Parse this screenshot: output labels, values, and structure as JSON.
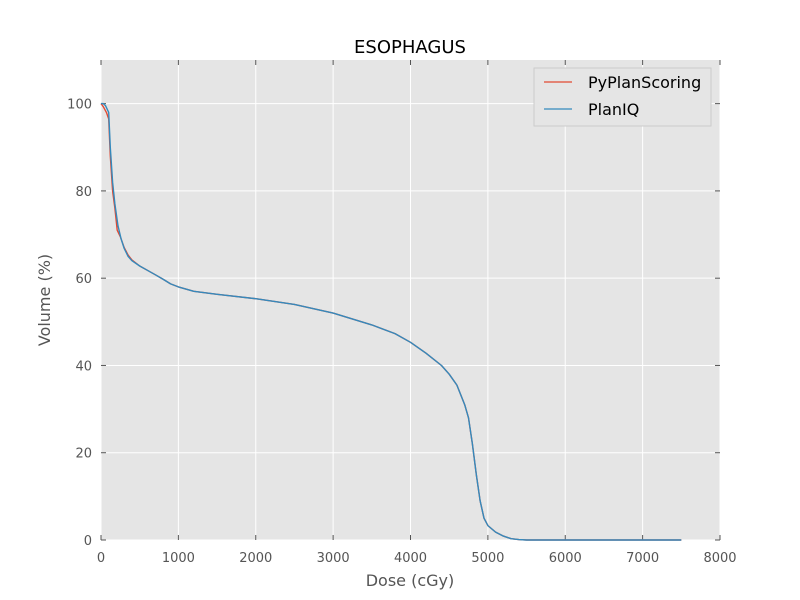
{
  "chart_data": {
    "type": "line",
    "title": "ESOPHAGUS",
    "xlabel": "Dose (cGy)",
    "ylabel": "Volume (%)",
    "xlim": [
      0,
      8000
    ],
    "ylim": [
      0,
      110
    ],
    "xticks": [
      0,
      1000,
      2000,
      3000,
      4000,
      5000,
      6000,
      7000,
      8000
    ],
    "yticks": [
      0,
      20,
      40,
      60,
      80,
      100
    ],
    "grid": true,
    "legend_position": "top-right",
    "series": [
      {
        "name": "PyPlanScoring",
        "color": "#e24a33",
        "points": [
          [
            0,
            100
          ],
          [
            30,
            99.3
          ],
          [
            70,
            98
          ],
          [
            100,
            96.5
          ],
          [
            120,
            88
          ],
          [
            150,
            80
          ],
          [
            180,
            76
          ],
          [
            210,
            71
          ],
          [
            250,
            69.5
          ],
          [
            300,
            67
          ],
          [
            350,
            65.3
          ],
          [
            400,
            64.2
          ],
          [
            500,
            62.8
          ],
          [
            600,
            61.8
          ],
          [
            700,
            60.8
          ],
          [
            800,
            59.8
          ],
          [
            900,
            58.7
          ],
          [
            1000,
            58
          ],
          [
            1200,
            57
          ],
          [
            1500,
            56.3
          ],
          [
            2000,
            55.3
          ],
          [
            2500,
            54
          ],
          [
            3000,
            52
          ],
          [
            3500,
            49.3
          ],
          [
            3800,
            47.3
          ],
          [
            4000,
            45.3
          ],
          [
            4200,
            42.8
          ],
          [
            4400,
            40
          ],
          [
            4500,
            38
          ],
          [
            4600,
            35.5
          ],
          [
            4700,
            31
          ],
          [
            4750,
            28
          ],
          [
            4800,
            22
          ],
          [
            4850,
            15
          ],
          [
            4900,
            9
          ],
          [
            4950,
            5
          ],
          [
            5000,
            3.3
          ],
          [
            5100,
            1.8
          ],
          [
            5200,
            0.9
          ],
          [
            5300,
            0.3
          ],
          [
            5400,
            0.1
          ],
          [
            5500,
            0
          ],
          [
            6000,
            0
          ],
          [
            7000,
            0
          ],
          [
            7500,
            0
          ]
        ]
      },
      {
        "name": "PlanIQ",
        "color": "#348abd",
        "points": [
          [
            0,
            100
          ],
          [
            30,
            100
          ],
          [
            60,
            99.5
          ],
          [
            100,
            98
          ],
          [
            120,
            90
          ],
          [
            150,
            82
          ],
          [
            180,
            77
          ],
          [
            220,
            72
          ],
          [
            260,
            69
          ],
          [
            300,
            66.8
          ],
          [
            350,
            65
          ],
          [
            400,
            64
          ],
          [
            500,
            62.8
          ],
          [
            600,
            61.8
          ],
          [
            700,
            60.8
          ],
          [
            800,
            59.8
          ],
          [
            900,
            58.7
          ],
          [
            1000,
            58
          ],
          [
            1200,
            57
          ],
          [
            1500,
            56.3
          ],
          [
            2000,
            55.3
          ],
          [
            2500,
            54
          ],
          [
            3000,
            52
          ],
          [
            3500,
            49.3
          ],
          [
            3800,
            47.3
          ],
          [
            4000,
            45.3
          ],
          [
            4200,
            42.8
          ],
          [
            4400,
            40
          ],
          [
            4500,
            38
          ],
          [
            4600,
            35.5
          ],
          [
            4700,
            31
          ],
          [
            4750,
            28
          ],
          [
            4800,
            22
          ],
          [
            4850,
            15
          ],
          [
            4900,
            9
          ],
          [
            4950,
            5
          ],
          [
            5000,
            3.3
          ],
          [
            5100,
            1.8
          ],
          [
            5200,
            0.9
          ],
          [
            5300,
            0.3
          ],
          [
            5400,
            0.1
          ],
          [
            5500,
            0
          ],
          [
            6000,
            0
          ],
          [
            7000,
            0
          ],
          [
            7500,
            0
          ]
        ]
      }
    ]
  }
}
